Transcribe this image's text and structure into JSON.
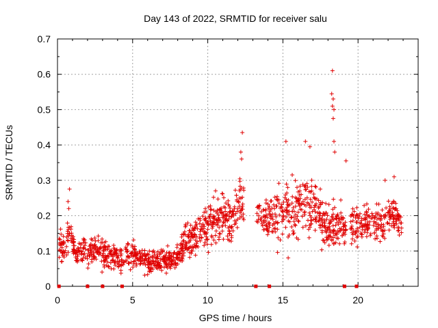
{
  "chart_data": {
    "type": "scatter",
    "title": "Day 143 of 2022, SRMTID for receiver salu",
    "xlabel": "GPS time / hours",
    "ylabel": "SRMTID / TECUs",
    "xlim": [
      0,
      24
    ],
    "ylim": [
      0,
      0.7
    ],
    "x_ticks": [
      0,
      5,
      10,
      15,
      20
    ],
    "x_tick_labels": [
      "0",
      "5",
      "10",
      "15",
      "20"
    ],
    "y_ticks": [
      0,
      0.1,
      0.2,
      0.3,
      0.4,
      0.5,
      0.6,
      0.7
    ],
    "y_tick_labels": [
      "0",
      "0.1",
      "0.2",
      "0.3",
      "0.4",
      "0.5",
      "0.6",
      "0.7"
    ],
    "grid": true,
    "series": [
      {
        "name": "SRMTID",
        "color": "#e00000",
        "marker": "plus",
        "profile": [
          {
            "x": 0.1,
            "y": 0.12,
            "spread": 0.05
          },
          {
            "x": 0.5,
            "y": 0.1,
            "spread": 0.04
          },
          {
            "x": 0.8,
            "y": 0.17,
            "spread": 0.06
          },
          {
            "x": 1.2,
            "y": 0.09,
            "spread": 0.03
          },
          {
            "x": 1.8,
            "y": 0.1,
            "spread": 0.03
          },
          {
            "x": 2.3,
            "y": 0.1,
            "spread": 0.04
          },
          {
            "x": 3.0,
            "y": 0.09,
            "spread": 0.04
          },
          {
            "x": 4.0,
            "y": 0.08,
            "spread": 0.035
          },
          {
            "x": 5.0,
            "y": 0.09,
            "spread": 0.035
          },
          {
            "x": 6.0,
            "y": 0.07,
            "spread": 0.03
          },
          {
            "x": 7.0,
            "y": 0.07,
            "spread": 0.03
          },
          {
            "x": 8.0,
            "y": 0.08,
            "spread": 0.03
          },
          {
            "x": 8.5,
            "y": 0.13,
            "spread": 0.04
          },
          {
            "x": 9.5,
            "y": 0.14,
            "spread": 0.05
          },
          {
            "x": 10.5,
            "y": 0.2,
            "spread": 0.06
          },
          {
            "x": 11.5,
            "y": 0.18,
            "spread": 0.06
          },
          {
            "x": 12.2,
            "y": 0.24,
            "spread": 0.07
          },
          {
            "x": 13.3,
            "y": 0.2,
            "spread": 0.06
          },
          {
            "x": 14.2,
            "y": 0.18,
            "spread": 0.06
          },
          {
            "x": 15.0,
            "y": 0.2,
            "spread": 0.08
          },
          {
            "x": 16.0,
            "y": 0.22,
            "spread": 0.08
          },
          {
            "x": 17.0,
            "y": 0.24,
            "spread": 0.08
          },
          {
            "x": 18.0,
            "y": 0.16,
            "spread": 0.06
          },
          {
            "x": 18.9,
            "y": 0.18,
            "spread": 0.06
          },
          {
            "x": 19.5,
            "y": 0.17,
            "spread": 0.05
          },
          {
            "x": 20.5,
            "y": 0.18,
            "spread": 0.05
          },
          {
            "x": 21.5,
            "y": 0.17,
            "spread": 0.05
          },
          {
            "x": 22.5,
            "y": 0.2,
            "spread": 0.05
          },
          {
            "x": 22.9,
            "y": 0.17,
            "spread": 0.04
          }
        ],
        "gaps": [
          [
            12.4,
            13.2
          ],
          [
            19.2,
            19.5
          ]
        ],
        "highlights": [
          {
            "x": 0.8,
            "y": 0.275
          },
          {
            "x": 0.7,
            "y": 0.24
          },
          {
            "x": 0.75,
            "y": 0.22
          },
          {
            "x": 12.3,
            "y": 0.435
          },
          {
            "x": 12.2,
            "y": 0.38
          },
          {
            "x": 12.25,
            "y": 0.36
          },
          {
            "x": 15.2,
            "y": 0.41
          },
          {
            "x": 16.5,
            "y": 0.41
          },
          {
            "x": 16.8,
            "y": 0.395
          },
          {
            "x": 18.3,
            "y": 0.61
          },
          {
            "x": 18.25,
            "y": 0.545
          },
          {
            "x": 18.35,
            "y": 0.53
          },
          {
            "x": 18.3,
            "y": 0.51
          },
          {
            "x": 18.4,
            "y": 0.5
          },
          {
            "x": 18.35,
            "y": 0.475
          },
          {
            "x": 18.4,
            "y": 0.41
          },
          {
            "x": 18.45,
            "y": 0.38
          },
          {
            "x": 19.2,
            "y": 0.355
          },
          {
            "x": 21.8,
            "y": 0.3
          },
          {
            "x": 22.4,
            "y": 0.31
          }
        ]
      }
    ],
    "baseline_markers": [
      0.1,
      2.0,
      3.0,
      4.3,
      13.2,
      14.1,
      19.1,
      19.9
    ]
  }
}
